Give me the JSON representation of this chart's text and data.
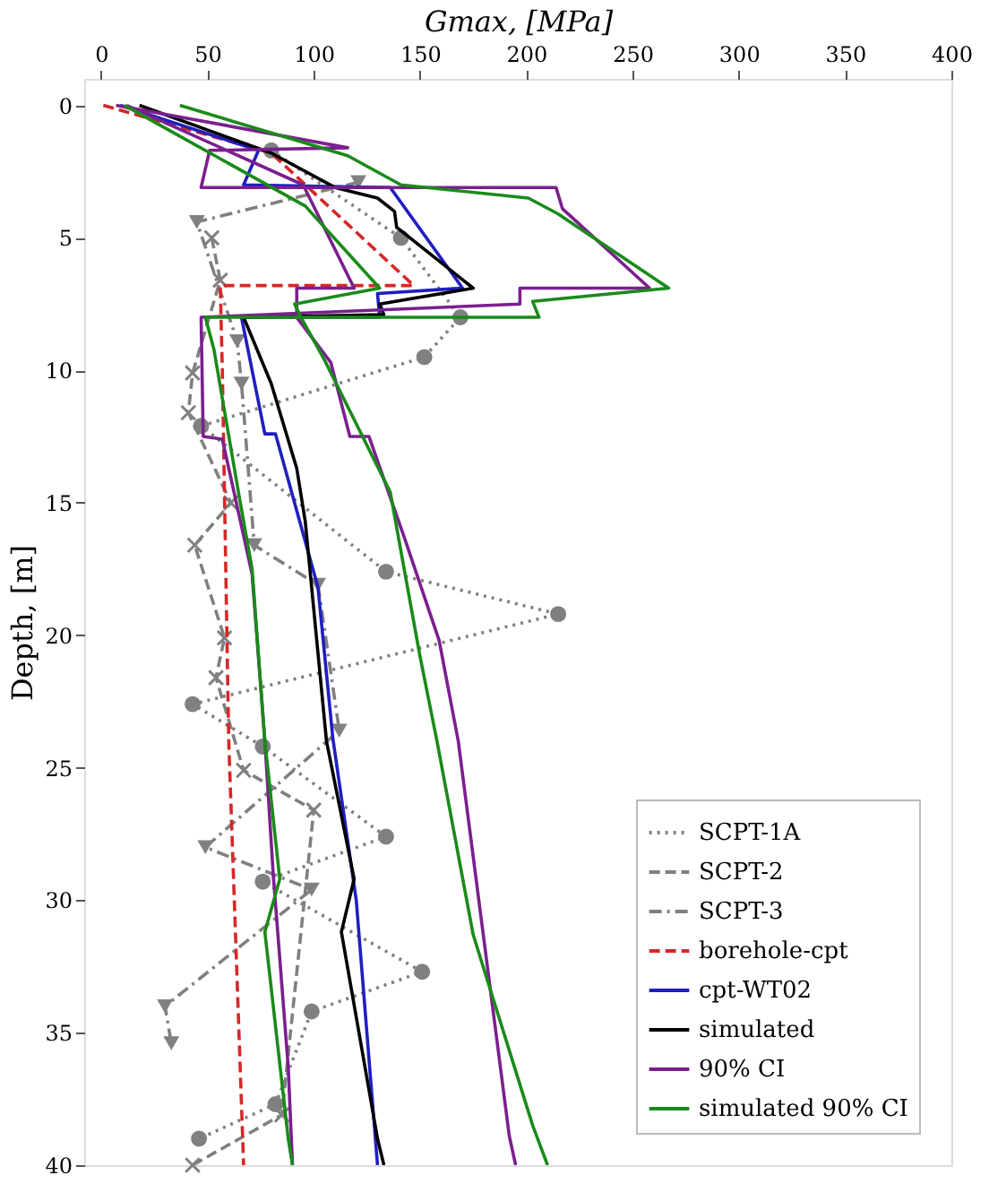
{
  "chart_data": {
    "type": "line",
    "xlabel": "Gmax, [MPa]",
    "ylabel": "Depth, [m]",
    "xlim": [
      -8,
      400
    ],
    "xticks": [
      0,
      50,
      100,
      150,
      200,
      250,
      300,
      350,
      400
    ],
    "ylim": [
      40,
      -1
    ],
    "yticks": [
      0,
      5,
      10,
      15,
      20,
      25,
      30,
      35,
      40
    ],
    "grid": false,
    "legend": "bottom right",
    "series": [
      {
        "name": "SCPT-1A",
        "color": "#808080",
        "marker": "circle",
        "line_style": "dotted",
        "x": [
          80,
          141,
          169,
          152,
          47,
          134,
          215,
          43,
          76,
          134,
          76,
          151,
          99,
          82,
          46
        ],
        "values": [
          1.7,
          5.0,
          8.0,
          9.5,
          12.1,
          17.6,
          19.2,
          22.6,
          24.2,
          27.6,
          29.3,
          32.7,
          34.2,
          37.7,
          39.0
        ]
      },
      {
        "name": "SCPT-2",
        "color": "#808080",
        "marker": "cross",
        "line_style": "dashed",
        "x": [
          52,
          56,
          43,
          41,
          61,
          44,
          58,
          54,
          67,
          100,
          85,
          43
        ],
        "values": [
          5.0,
          6.6,
          10.1,
          11.6,
          15.0,
          16.6,
          20.1,
          21.6,
          25.1,
          26.6,
          38.1,
          40.0
        ]
      },
      {
        "name": "SCPT-3",
        "color": "#808080",
        "marker": "triangle",
        "line_style": "dashdot",
        "x": [
          121,
          45,
          64,
          66,
          72,
          102,
          112,
          49,
          99,
          30,
          33
        ],
        "values": [
          2.9,
          4.4,
          8.9,
          10.5,
          16.6,
          18.1,
          23.6,
          28.0,
          29.6,
          34.0,
          35.4
        ]
      },
      {
        "name": "borehole-cpt",
        "color": "#d62728",
        "marker": "none",
        "line_style": "dashed",
        "x": [
          1,
          80,
          147,
          56,
          57,
          60,
          67
        ],
        "values": [
          0,
          1.8,
          6.8,
          6.8,
          10,
          24,
          40
        ]
      },
      {
        "name": "cpt-WT02",
        "color": "#1f1fbf",
        "marker": "none",
        "line_style": "solid",
        "x": [
          9,
          74,
          67,
          136,
          170,
          130,
          131,
          66,
          77,
          82,
          102,
          109,
          120,
          130
        ],
        "values": [
          0,
          1.7,
          3.0,
          3.1,
          6.9,
          7.1,
          8.0,
          8.0,
          12.4,
          12.4,
          18.2,
          23.9,
          30,
          40
        ]
      },
      {
        "name": "simulated",
        "color": "#000000",
        "marker": "none",
        "line_style": "solid",
        "x": [
          18,
          80,
          110,
          130,
          138,
          139,
          175,
          131,
          133,
          67,
          80,
          92,
          96,
          106,
          119,
          113,
          130,
          133
        ],
        "values": [
          0,
          1.8,
          3.1,
          3.5,
          4.0,
          4.6,
          6.9,
          7.5,
          7.9,
          8.0,
          10.5,
          13.7,
          15.7,
          24,
          29.2,
          31.2,
          39,
          40
        ]
      },
      {
        "name": "90% CI",
        "color": "#7b1f8f",
        "marker": "none",
        "line_style": "solid",
        "x": [
          7,
          116,
          51,
          47,
          214,
          217,
          258,
          197,
          197,
          47,
          48,
          57,
          71,
          77,
          81,
          88,
          90
        ],
        "values": [
          0,
          1.6,
          1.7,
          3.1,
          3.1,
          3.9,
          6.9,
          6.9,
          7.5,
          8.0,
          12.5,
          12.6,
          17.7,
          24,
          29.1,
          36.3,
          40
        ]
      },
      {
        "color": "#7b1f8f",
        "marker": "none",
        "line_style": "solid",
        "x": [
          12,
          95,
          119,
          92,
          92,
          108,
          117,
          126,
          143,
          159,
          168,
          192,
          195
        ],
        "values": [
          0,
          3.0,
          6.9,
          6.9,
          8.0,
          9.7,
          12.5,
          12.5,
          16.4,
          20.2,
          24,
          38.9,
          40
        ]
      },
      {
        "name": "simulated 90% CI",
        "color": "#1a8a1a",
        "marker": "none",
        "line_style": "solid",
        "x": [
          37,
          116,
          141,
          201,
          215,
          267,
          203,
          206,
          49,
          53,
          65,
          71,
          77,
          84,
          77,
          88,
          90
        ],
        "values": [
          0,
          1.9,
          3.0,
          3.5,
          4.1,
          6.9,
          7.4,
          8.0,
          8.0,
          9.2,
          14.8,
          17.5,
          24,
          29.2,
          31.2,
          39,
          40
        ]
      },
      {
        "color": "#1a8a1a",
        "marker": "none",
        "line_style": "solid",
        "x": [
          11,
          96,
          131,
          91,
          94,
          105,
          136,
          150,
          158,
          175,
          203,
          210
        ],
        "values": [
          0,
          3.8,
          6.9,
          7.5,
          8.0,
          9.6,
          14.6,
          20.8,
          24,
          31.3,
          38.5,
          40
        ]
      }
    ]
  }
}
